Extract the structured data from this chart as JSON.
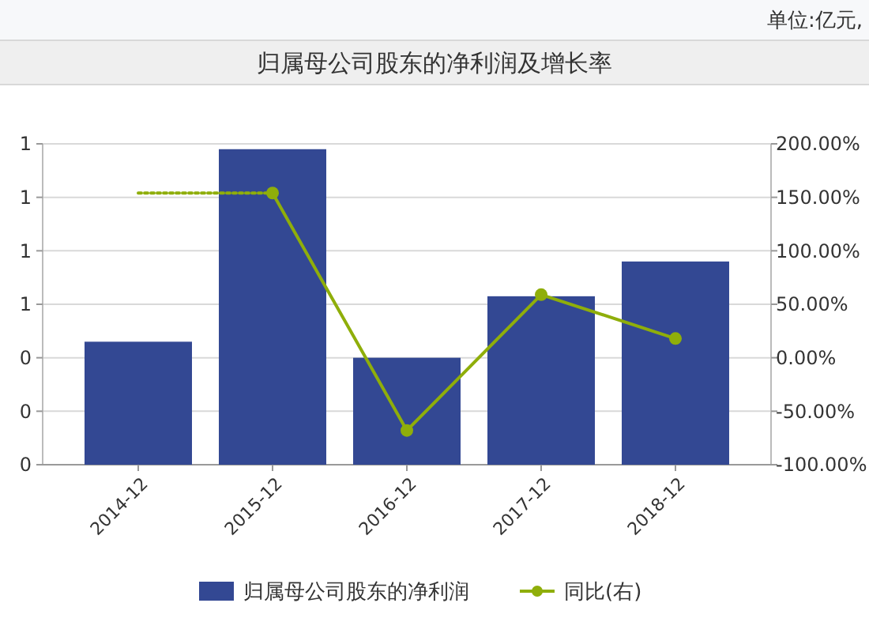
{
  "chart_data": {
    "type": "bar",
    "title": "归属母公司股东的净利润及增长率",
    "annotations": [
      "单位:亿元,"
    ],
    "categories": [
      "2014-12",
      "2015-12",
      "2016-12",
      "2017-12",
      "2018-12"
    ],
    "series": [
      {
        "name": "归属母公司股东的净利润",
        "color": "#334893",
        "values": [
          0.46,
          1.18,
          0.4,
          0.63,
          0.76
        ]
      },
      {
        "name": "同比(右)",
        "type": "line",
        "axis": "y2",
        "color": "#8fae0a",
        "marker": "circle",
        "line_style": "solid",
        "values": [
          null,
          154,
          -68,
          59,
          18
        ]
      },
      {
        "type": "line",
        "axis": "y2",
        "color": "#8fae0a",
        "marker": "none",
        "line_style": "dotted",
        "values": [
          154,
          154,
          null,
          null,
          null
        ]
      }
    ],
    "ylim": [
      0,
      1.2
    ],
    "yticks": [
      0,
      {
        "value": 0.2,
        "label": "0"
      },
      {
        "value": 0.4,
        "label": "0"
      },
      {
        "value": 0.6,
        "label": "1"
      },
      {
        "value": 0.8,
        "label": "1"
      },
      {
        "value": 1,
        "label": "1"
      },
      {
        "value": 1.2,
        "label": "1"
      }
    ],
    "y2lim": [
      -100,
      200
    ],
    "y2ticks": [
      {
        "value": -100,
        "label": "-100.00%"
      },
      {
        "value": -50,
        "label": "-50.00%"
      },
      {
        "value": 0,
        "label": "0.00%"
      },
      {
        "value": 50,
        "label": "50.00%"
      },
      {
        "value": 100,
        "label": "100.00%"
      },
      {
        "value": 150,
        "label": "150.00%"
      },
      {
        "value": 200,
        "label": "200.00%"
      }
    ],
    "grid": "y",
    "legend": "bottom"
  }
}
